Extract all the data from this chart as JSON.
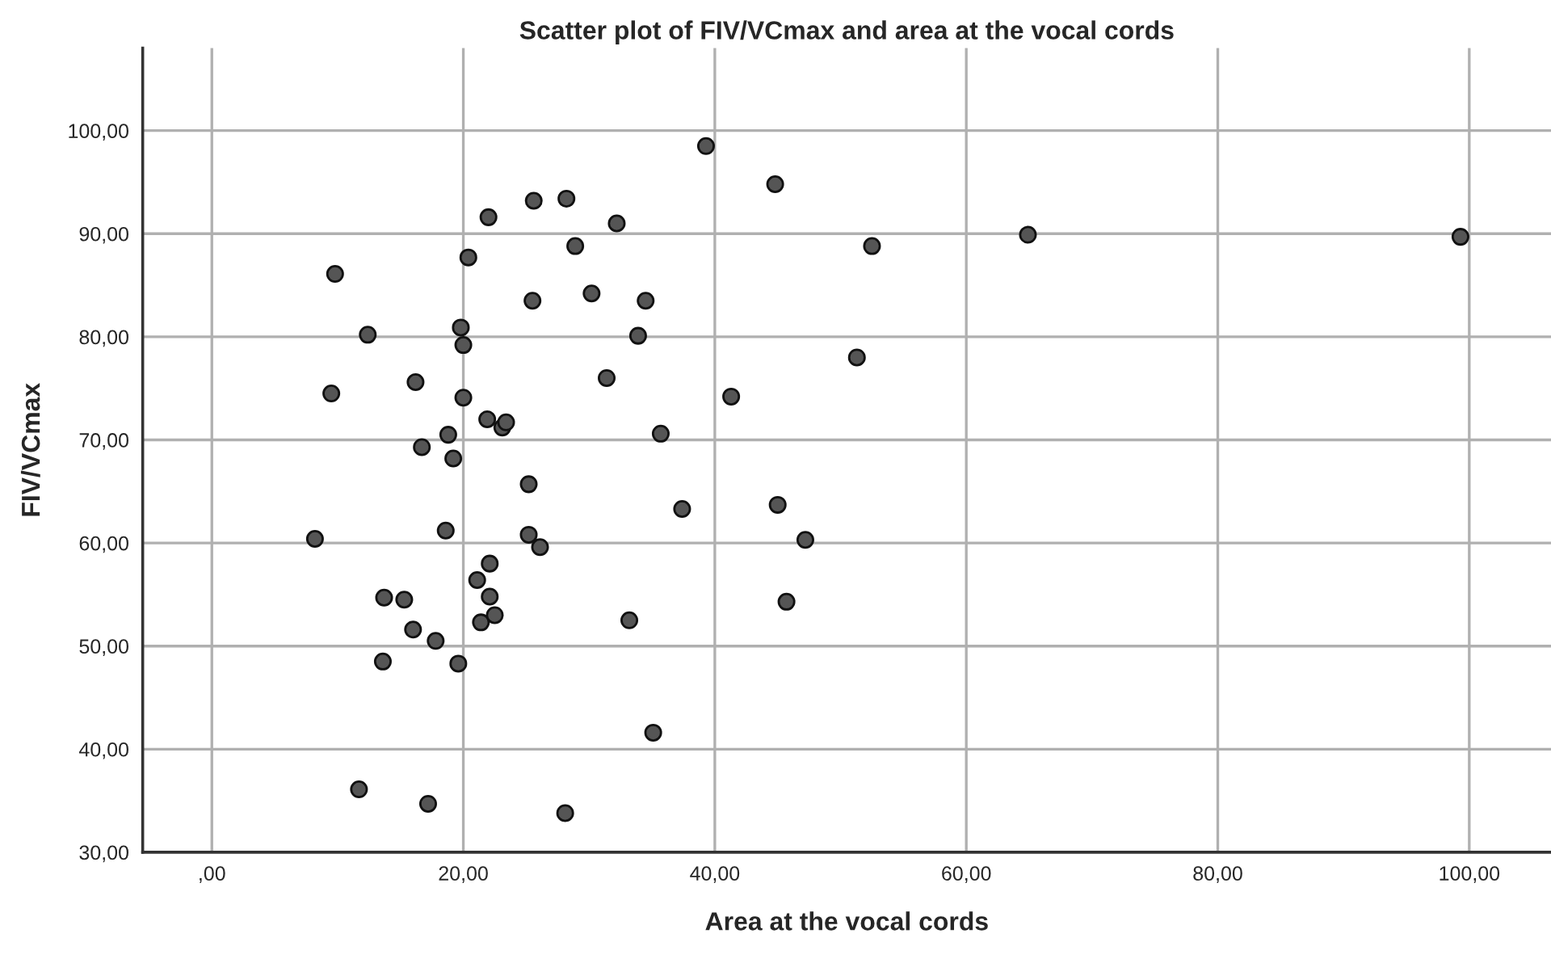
{
  "chart_data": {
    "type": "scatter",
    "title": "Scatter plot of FIV/VCmax and area at the vocal cords",
    "xlabel": "Area at the vocal cords",
    "ylabel": "FIV/VCmax",
    "x": [
      9.8,
      9.5,
      8.2,
      11.7,
      12.4,
      13.7,
      13.6,
      15.3,
      16.0,
      16.2,
      16.7,
      17.2,
      17.8,
      18.6,
      18.8,
      19.2,
      19.6,
      19.8,
      20.0,
      20.0,
      20.4,
      21.1,
      21.4,
      21.9,
      22.1,
      22.0,
      22.1,
      22.5,
      23.1,
      23.4,
      25.2,
      25.2,
      25.5,
      25.6,
      26.1,
      28.2,
      28.1,
      28.9,
      30.2,
      31.4,
      32.2,
      33.2,
      33.9,
      34.5,
      35.1,
      35.7,
      37.4,
      39.3,
      41.3,
      44.8,
      45.0,
      45.7,
      47.2,
      51.3,
      52.5,
      64.9,
      99.3
    ],
    "values": [
      86.1,
      74.5,
      60.4,
      36.1,
      80.2,
      54.7,
      48.5,
      54.5,
      51.6,
      75.6,
      69.3,
      34.7,
      50.5,
      61.2,
      70.5,
      68.2,
      48.3,
      80.9,
      79.2,
      74.1,
      87.7,
      56.4,
      52.3,
      72.0,
      58.0,
      91.6,
      54.8,
      53.0,
      71.2,
      71.7,
      65.7,
      60.8,
      83.5,
      93.2,
      59.6,
      93.4,
      33.8,
      88.8,
      84.2,
      76.0,
      91.0,
      52.5,
      80.1,
      83.5,
      41.6,
      70.6,
      63.3,
      98.5,
      74.2,
      94.8,
      63.7,
      54.3,
      60.3,
      78.0,
      88.8,
      89.9,
      89.7
    ],
    "color": "#555555",
    "marker": "circle",
    "grid": true,
    "xlim": [
      -5.5,
      106.5
    ],
    "ylim": [
      30,
      108
    ],
    "xticks": [
      {
        "value": 0,
        "label": ",00"
      },
      {
        "value": 20,
        "label": "20,00"
      },
      {
        "value": 40,
        "label": "40,00"
      },
      {
        "value": 60,
        "label": "60,00"
      },
      {
        "value": 80,
        "label": "80,00"
      },
      {
        "value": 100,
        "label": "100,00"
      }
    ],
    "yticks": [
      {
        "value": 30,
        "label": "30,00"
      },
      {
        "value": 40,
        "label": "40,00"
      },
      {
        "value": 50,
        "label": "50,00"
      },
      {
        "value": 60,
        "label": "60,00"
      },
      {
        "value": 70,
        "label": "70,00"
      },
      {
        "value": 80,
        "label": "80,00"
      },
      {
        "value": 90,
        "label": "90,00"
      },
      {
        "value": 100,
        "label": "100,00"
      }
    ]
  }
}
